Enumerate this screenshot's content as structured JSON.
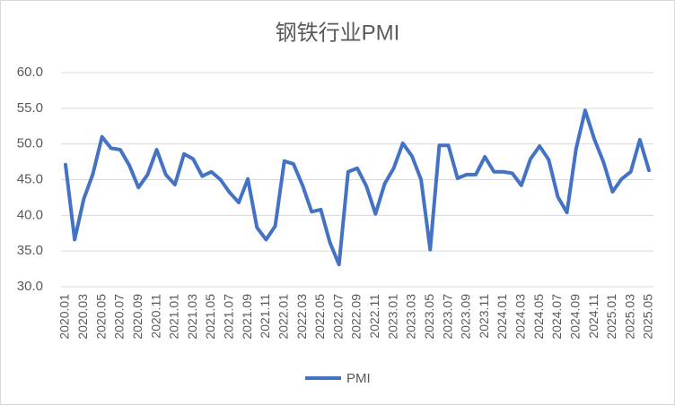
{
  "chart_data": {
    "type": "line",
    "title": "钢铁行业PMI",
    "categories": [
      "2020.01",
      null,
      "2020.03",
      null,
      "2020.05",
      null,
      "2020.07",
      null,
      "2020.09",
      null,
      "2020.11",
      null,
      "2021.01",
      null,
      "2021.03",
      null,
      "2021.05",
      null,
      "2021.07",
      null,
      "2021.09",
      null,
      "2021.11",
      null,
      "2022.01",
      null,
      "2022.03",
      null,
      "2022.05",
      null,
      "2022.07",
      null,
      "2022.09",
      null,
      "2022.11",
      null,
      "2023.01",
      null,
      "2023.03",
      null,
      "2023.05",
      null,
      "2023.07",
      null,
      "2023.09",
      null,
      "2023.11",
      null,
      "2024.01",
      null,
      "2024.03",
      null,
      "2024.05",
      null,
      "2024.07",
      null,
      "2024.09",
      null,
      "2024.11",
      null,
      "2025.01",
      null,
      "2025.03",
      null,
      "2025.05"
    ],
    "series": [
      {
        "name": "PMI",
        "color": "#4472c4",
        "values": [
          47.1,
          36.6,
          42.3,
          45.8,
          51.0,
          49.4,
          49.2,
          47.0,
          43.9,
          45.7,
          49.2,
          45.7,
          44.3,
          48.6,
          47.9,
          45.5,
          46.1,
          45.0,
          43.2,
          41.8,
          45.1,
          38.3,
          36.6,
          38.5,
          47.6,
          47.2,
          44.2,
          40.5,
          40.8,
          36.2,
          33.1,
          46.1,
          46.6,
          44.1,
          40.2,
          44.4,
          46.6,
          50.1,
          48.3,
          45.0,
          35.2,
          49.8,
          49.8,
          45.2,
          45.7,
          45.7,
          48.2,
          46.1,
          46.1,
          45.9,
          44.2,
          47.9,
          49.7,
          47.8,
          42.6,
          40.4,
          49.3,
          54.7,
          50.7,
          47.5,
          43.3,
          45.1,
          46.1,
          50.6,
          46.3
        ]
      }
    ],
    "ylim": [
      30,
      60
    ],
    "yticks": [
      {
        "value": 30,
        "label": "30.0"
      },
      {
        "value": 35,
        "label": "35.0"
      },
      {
        "value": 40,
        "label": "40.0"
      },
      {
        "value": 45,
        "label": "45.0"
      },
      {
        "value": 50,
        "label": "50.0"
      },
      {
        "value": 55,
        "label": "55.0"
      },
      {
        "value": 60,
        "label": "60.0"
      }
    ],
    "grid": true,
    "legend": "bottom"
  }
}
